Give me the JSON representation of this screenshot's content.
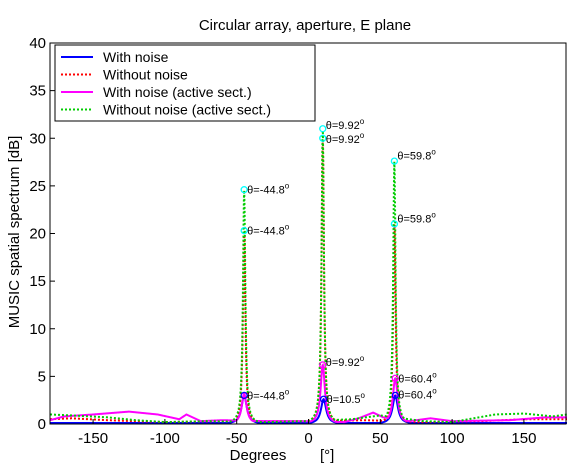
{
  "chart_data": {
    "type": "line",
    "title": "Circular array, aperture, E plane",
    "xlabel": "Degrees",
    "xlabel_unit": "[°]",
    "ylabel": "MUSIC spatial spectrum   [dB]",
    "xlim": [
      -180,
      180
    ],
    "ylim": [
      0,
      40
    ],
    "xticks": [
      -150,
      -100,
      -50,
      0,
      50,
      100,
      150
    ],
    "yticks": [
      0,
      5,
      10,
      15,
      20,
      25,
      30,
      35,
      40
    ],
    "grid": false,
    "legend_position": "top-left",
    "series": [
      {
        "name": "With noise",
        "color": "#0000ff",
        "dash": "solid",
        "peaks": [
          {
            "x": -44.8,
            "y": 3.0,
            "w": 2.2
          },
          {
            "x": 10.5,
            "y": 2.6,
            "w": 2.2
          },
          {
            "x": 60.4,
            "y": 3.0,
            "w": 2.2
          }
        ],
        "floor": [
          [
            -180,
            0.1
          ],
          [
            180,
            0.1
          ]
        ]
      },
      {
        "name": "Without noise",
        "color": "#ff0000",
        "dash": "dotted",
        "peaks": [
          {
            "x": -44.8,
            "y": 20.3,
            "w": 1.0
          },
          {
            "x": 9.92,
            "y": 30.0,
            "w": 1.0
          },
          {
            "x": 59.8,
            "y": 21.0,
            "w": 1.0
          }
        ],
        "floor": [
          [
            -180,
            0.5
          ],
          [
            -165,
            0.6
          ],
          [
            -140,
            0.4
          ],
          [
            -100,
            0.2
          ],
          [
            -60,
            0.3
          ],
          [
            0,
            0.3
          ],
          [
            40,
            0.4
          ],
          [
            80,
            0.2
          ],
          [
            120,
            0.3
          ],
          [
            150,
            0.5
          ],
          [
            180,
            0.5
          ]
        ]
      },
      {
        "name": "With noise (active sect.)",
        "color": "#ff00ff",
        "dash": "solid",
        "peaks": [
          {
            "x": -44.8,
            "y": 3.2,
            "w": 2.0
          },
          {
            "x": 9.92,
            "y": 6.2,
            "w": 1.8
          },
          {
            "x": 60.4,
            "y": 4.8,
            "w": 2.0
          }
        ],
        "floor": [
          [
            -180,
            0.4
          ],
          [
            -170,
            0.8
          ],
          [
            -150,
            1.0
          ],
          [
            -125,
            1.3
          ],
          [
            -105,
            1.0
          ],
          [
            -90,
            0.5
          ],
          [
            -85,
            1.0
          ],
          [
            -75,
            0.3
          ],
          [
            -60,
            0.4
          ],
          [
            -30,
            0.3
          ],
          [
            -5,
            0.3
          ],
          [
            25,
            0.2
          ],
          [
            35,
            0.6
          ],
          [
            45,
            1.2
          ],
          [
            52,
            0.7
          ],
          [
            70,
            0.3
          ],
          [
            85,
            0.6
          ],
          [
            100,
            0.3
          ],
          [
            140,
            0.4
          ],
          [
            165,
            0.7
          ],
          [
            180,
            0.7
          ]
        ]
      },
      {
        "name": "Without noise (active sect.)",
        "color": "#00cc00",
        "dash": "dotted",
        "peaks": [
          {
            "x": -44.8,
            "y": 24.6,
            "w": 1.0
          },
          {
            "x": 9.92,
            "y": 31.0,
            "w": 1.0
          },
          {
            "x": 59.8,
            "y": 27.6,
            "w": 1.0
          }
        ],
        "floor": [
          [
            -180,
            1.0
          ],
          [
            -165,
            0.9
          ],
          [
            -140,
            0.7
          ],
          [
            -120,
            0.4
          ],
          [
            -100,
            0.2
          ],
          [
            -70,
            0.3
          ],
          [
            -30,
            0.2
          ],
          [
            0,
            0.3
          ],
          [
            30,
            0.5
          ],
          [
            50,
            0.9
          ],
          [
            80,
            0.3
          ],
          [
            100,
            0.2
          ],
          [
            130,
            1.0
          ],
          [
            150,
            1.1
          ],
          [
            170,
            0.8
          ],
          [
            180,
            1.0
          ]
        ]
      }
    ],
    "peak_markers": [
      {
        "x": -44.8,
        "y": 24.6,
        "color": "#00ffff"
      },
      {
        "x": -44.8,
        "y": 20.3,
        "color": "#00ffff"
      },
      {
        "x": 9.92,
        "y": 31.0,
        "color": "#00ffff"
      },
      {
        "x": 9.92,
        "y": 30.0,
        "color": "#00ffff"
      },
      {
        "x": 59.8,
        "y": 27.6,
        "color": "#00ffff"
      },
      {
        "x": 59.8,
        "y": 21.0,
        "color": "#00ffff"
      },
      {
        "x": -44.8,
        "y": 3.0,
        "color": "#0000ff"
      },
      {
        "x": 10.5,
        "y": 2.6,
        "color": "#0000ff"
      },
      {
        "x": 60.4,
        "y": 3.0,
        "color": "#0000ff"
      },
      {
        "x": 9.92,
        "y": 6.2,
        "color": "#ff00ff"
      },
      {
        "x": 60.4,
        "y": 4.8,
        "color": "#ff00ff"
      }
    ],
    "annotations": [
      {
        "theta": "-44.8",
        "x": -44.8,
        "y": 24.6
      },
      {
        "theta": "-44.8",
        "x": -44.8,
        "y": 20.3
      },
      {
        "theta": "-44.8",
        "x": -44.8,
        "y": 3.0
      },
      {
        "theta": "9.92",
        "x": 9.92,
        "y": 31.4
      },
      {
        "theta": "9.92",
        "x": 9.92,
        "y": 29.9
      },
      {
        "theta": "9.92",
        "x": 9.92,
        "y": 6.5
      },
      {
        "theta": "10.5",
        "x": 10.5,
        "y": 2.6
      },
      {
        "theta": "59.8",
        "x": 59.8,
        "y": 28.2
      },
      {
        "theta": "59.8",
        "x": 59.8,
        "y": 21.6
      },
      {
        "theta": "60.4",
        "x": 60.4,
        "y": 4.8
      },
      {
        "theta": "60.4",
        "x": 60.4,
        "y": 3.1
      }
    ]
  }
}
